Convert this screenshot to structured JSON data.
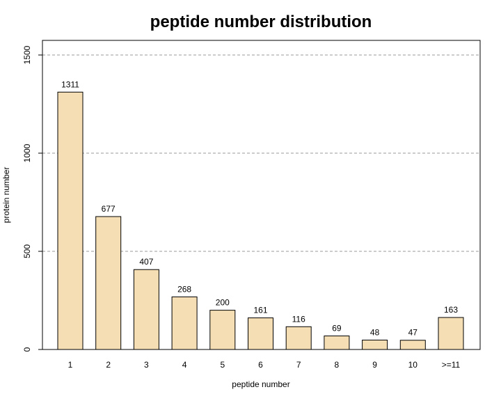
{
  "chart_data": {
    "type": "bar",
    "title": "peptide number distribution",
    "xlabel": "peptide number",
    "ylabel": "protein number",
    "categories": [
      "1",
      "2",
      "3",
      "4",
      "5",
      "6",
      "7",
      "8",
      "9",
      "10",
      ">=11"
    ],
    "values": [
      1311,
      677,
      407,
      268,
      200,
      161,
      116,
      69,
      48,
      47,
      163
    ],
    "data_labels": [
      "1311",
      "677",
      "407",
      "268",
      "200",
      "161",
      "116",
      "69",
      "48",
      "47",
      "163"
    ],
    "ylim": [
      0,
      1500
    ],
    "yticks": [
      0,
      500,
      1000,
      1500
    ],
    "ytick_labels": [
      "0",
      "500",
      "1000",
      "1500"
    ],
    "grid": "horizontal dashed",
    "legend": "none",
    "colors": {
      "bar_fill": "#f5deb3",
      "bar_stroke": "#000000",
      "grid": "#9a9a9a"
    }
  }
}
